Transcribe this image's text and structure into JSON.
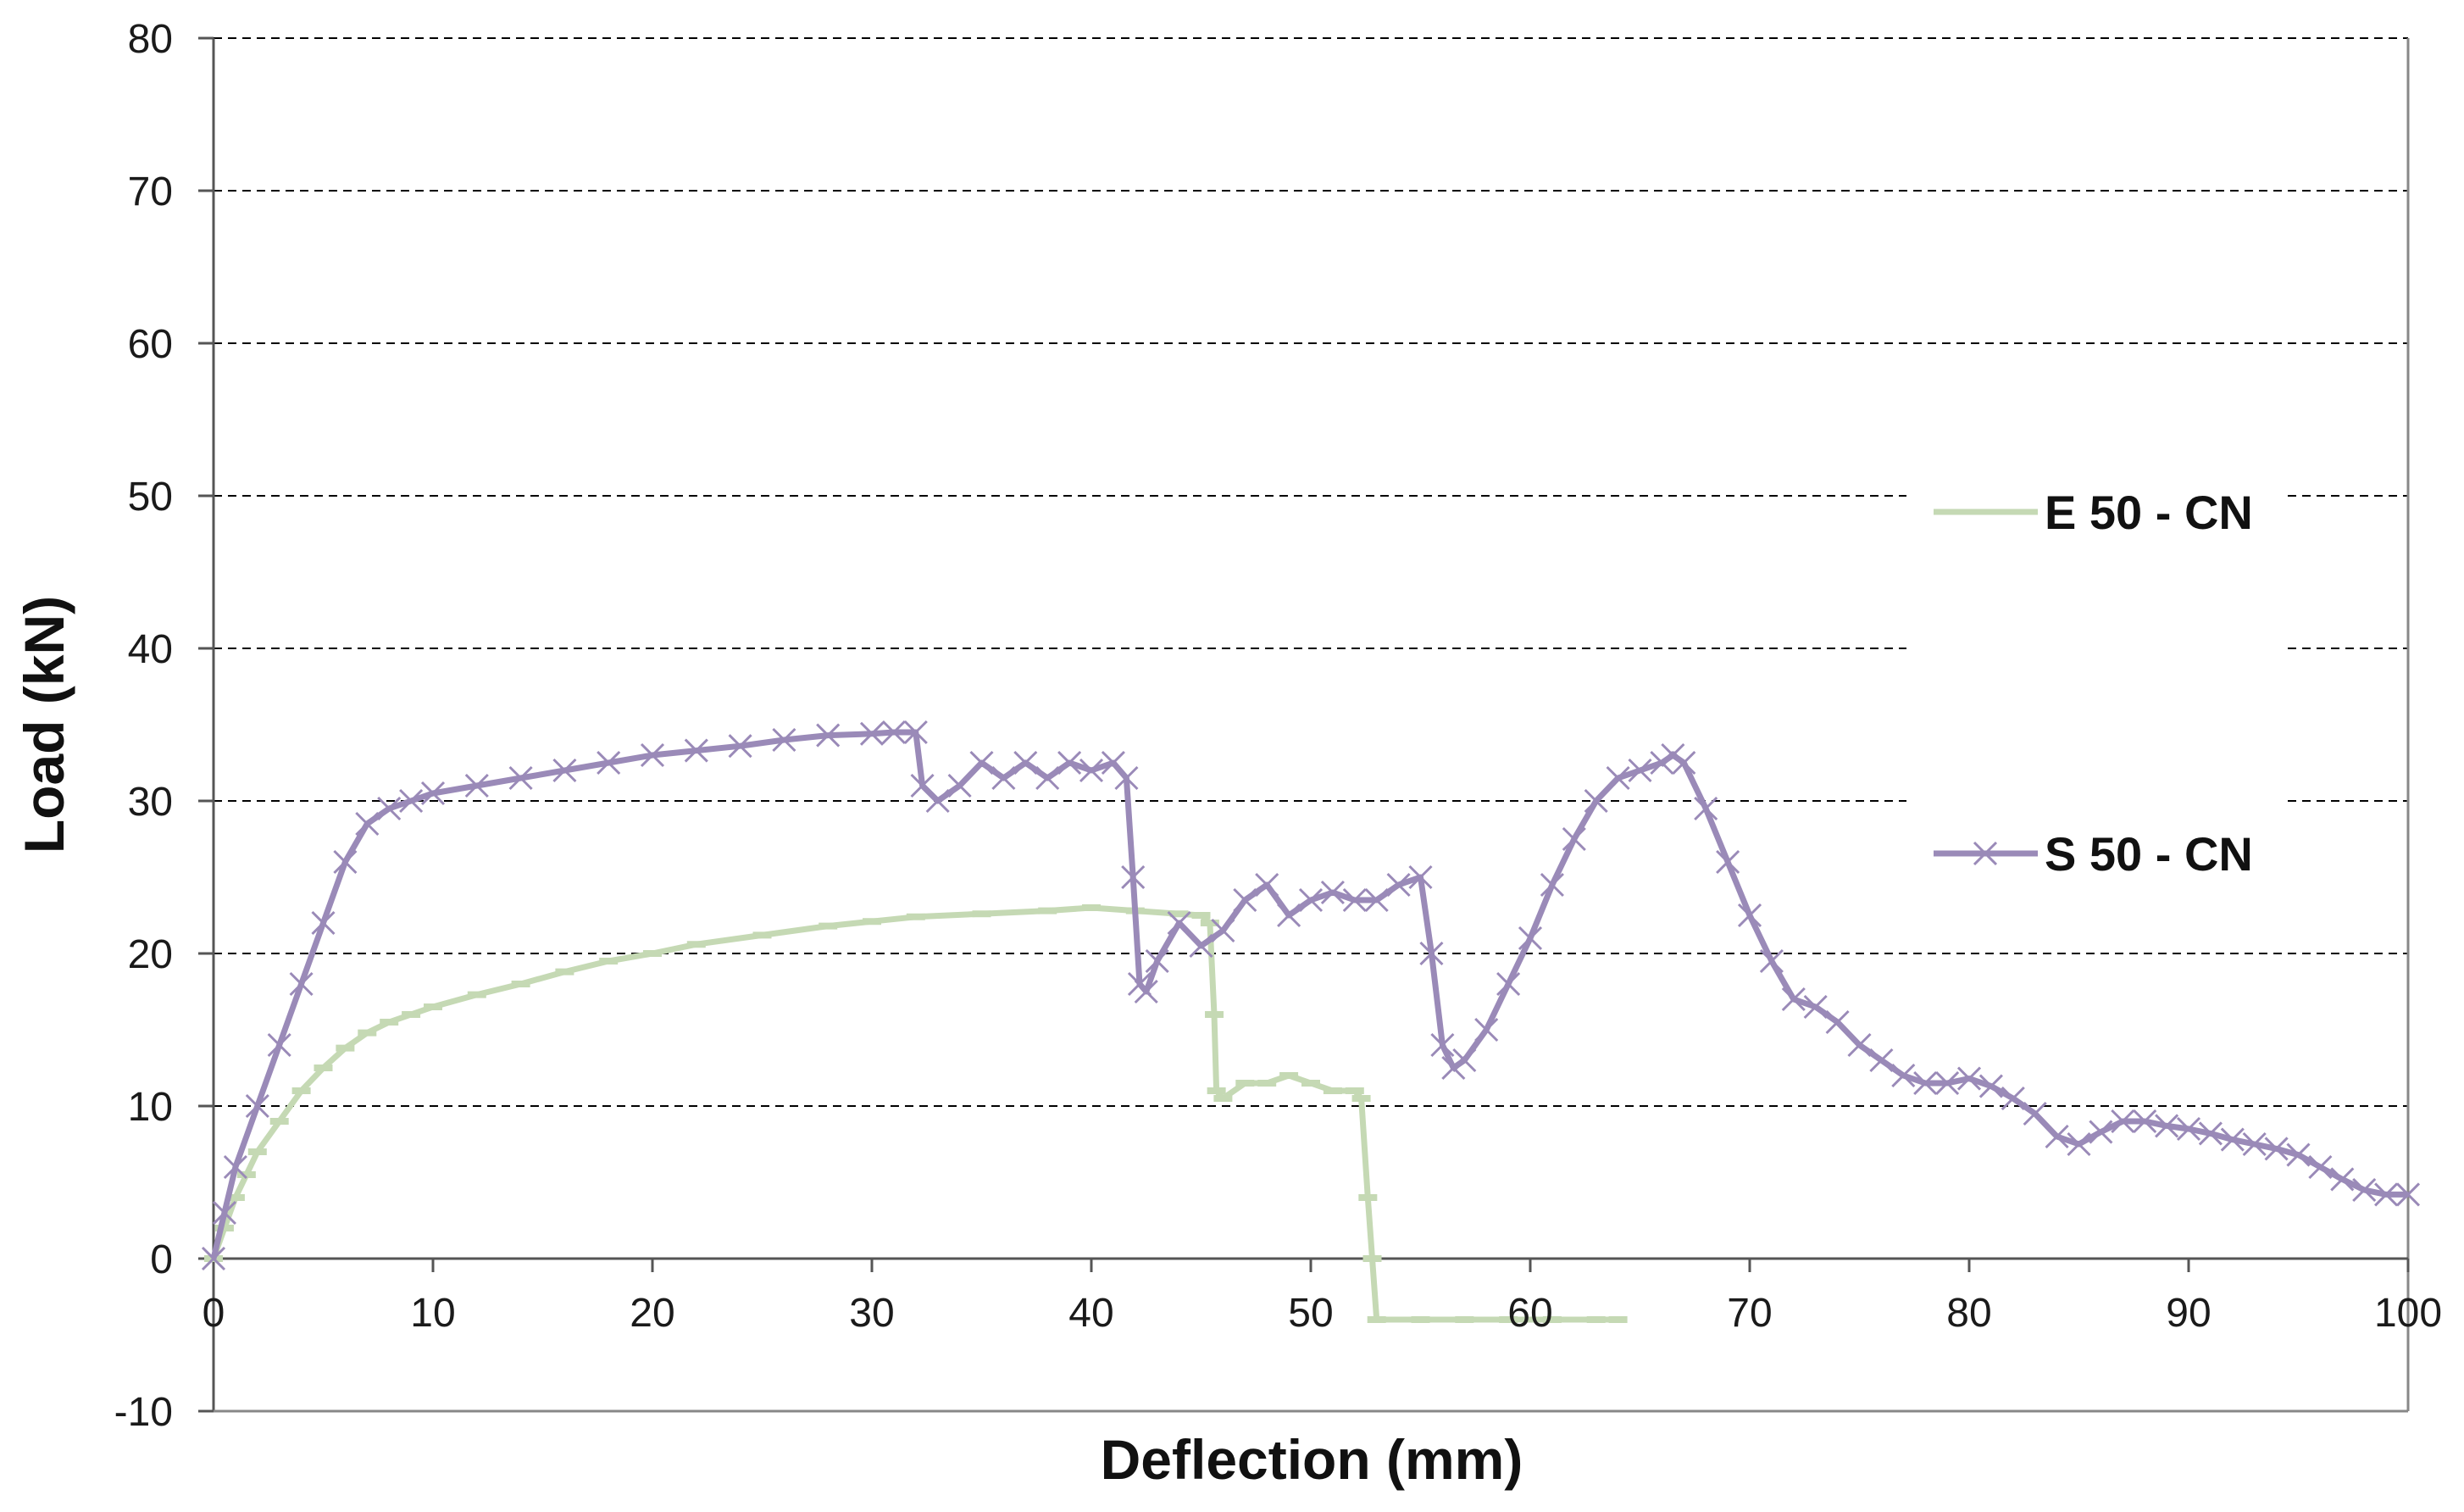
{
  "chart_data": {
    "type": "line",
    "title": "",
    "xlabel": "Deflection (mm)",
    "ylabel": "Load (kN)",
    "xlim": [
      0,
      100
    ],
    "ylim": [
      -10,
      80
    ],
    "xticks": [
      0,
      10,
      20,
      30,
      40,
      50,
      60,
      70,
      80,
      90,
      100
    ],
    "yticks": [
      -10,
      0,
      10,
      20,
      30,
      40,
      50,
      60,
      70,
      80
    ],
    "x_tick_labels": [
      "0",
      "10",
      "20",
      "30",
      "40",
      "50",
      "60",
      "70",
      "80",
      "90",
      "100"
    ],
    "y_tick_labels": [
      "-10",
      "0",
      "10",
      "20",
      "30",
      "40",
      "50",
      "60",
      "70",
      "80"
    ],
    "grid": "horizontal dashed",
    "legend_position": "right",
    "series": [
      {
        "name": "E 50 - CN",
        "color": "#c5d9b4",
        "marker": "dash",
        "points": [
          [
            0,
            0
          ],
          [
            0.5,
            2
          ],
          [
            1,
            4
          ],
          [
            1.5,
            5.5
          ],
          [
            2,
            7
          ],
          [
            3,
            9
          ],
          [
            4,
            11
          ],
          [
            5,
            12.5
          ],
          [
            6,
            13.8
          ],
          [
            7,
            14.8
          ],
          [
            8,
            15.5
          ],
          [
            9,
            16
          ],
          [
            10,
            16.5
          ],
          [
            12,
            17.3
          ],
          [
            14,
            18
          ],
          [
            16,
            18.8
          ],
          [
            18,
            19.5
          ],
          [
            20,
            20
          ],
          [
            22,
            20.6
          ],
          [
            25,
            21.2
          ],
          [
            28,
            21.8
          ],
          [
            30,
            22.1
          ],
          [
            32,
            22.4
          ],
          [
            35,
            22.6
          ],
          [
            38,
            22.8
          ],
          [
            40,
            23
          ],
          [
            42,
            22.8
          ],
          [
            44,
            22.6
          ],
          [
            45,
            22.5
          ],
          [
            45.4,
            22
          ],
          [
            45.6,
            16
          ],
          [
            45.7,
            11
          ],
          [
            46,
            10.5
          ],
          [
            47,
            11.5
          ],
          [
            48,
            11.5
          ],
          [
            49,
            12
          ],
          [
            50,
            11.5
          ],
          [
            51,
            11
          ],
          [
            52,
            11
          ],
          [
            52.3,
            10.5
          ],
          [
            52.6,
            4
          ],
          [
            52.8,
            0
          ],
          [
            53,
            -4
          ],
          [
            55,
            -4
          ],
          [
            57,
            -4
          ],
          [
            59,
            -4
          ],
          [
            61,
            -4
          ],
          [
            63,
            -4
          ],
          [
            64,
            -4
          ]
        ]
      },
      {
        "name": "S 50 - CN",
        "color": "#9a8ab8",
        "marker": "x",
        "points": [
          [
            0,
            0
          ],
          [
            0.5,
            3
          ],
          [
            1,
            6
          ],
          [
            2,
            10
          ],
          [
            3,
            14
          ],
          [
            4,
            18
          ],
          [
            5,
            22
          ],
          [
            6,
            26
          ],
          [
            7,
            28.5
          ],
          [
            8,
            29.5
          ],
          [
            9,
            30
          ],
          [
            10,
            30.5
          ],
          [
            12,
            31
          ],
          [
            14,
            31.5
          ],
          [
            16,
            32
          ],
          [
            18,
            32.5
          ],
          [
            20,
            33
          ],
          [
            22,
            33.3
          ],
          [
            24,
            33.6
          ],
          [
            26,
            34
          ],
          [
            28,
            34.3
          ],
          [
            30,
            34.4
          ],
          [
            31,
            34.5
          ],
          [
            32,
            34.5
          ],
          [
            32.3,
            31
          ],
          [
            33,
            30
          ],
          [
            34,
            31
          ],
          [
            35,
            32.5
          ],
          [
            36,
            31.5
          ],
          [
            37,
            32.5
          ],
          [
            38,
            31.5
          ],
          [
            39,
            32.5
          ],
          [
            40,
            32
          ],
          [
            41,
            32.5
          ],
          [
            41.6,
            31.5
          ],
          [
            41.9,
            25
          ],
          [
            42.2,
            18
          ],
          [
            42.5,
            17.5
          ],
          [
            43,
            19.5
          ],
          [
            44,
            22
          ],
          [
            45,
            20.5
          ],
          [
            46,
            21.5
          ],
          [
            47,
            23.5
          ],
          [
            48,
            24.5
          ],
          [
            49,
            22.5
          ],
          [
            50,
            23.5
          ],
          [
            51,
            24
          ],
          [
            52,
            23.5
          ],
          [
            53,
            23.5
          ],
          [
            54,
            24.5
          ],
          [
            55,
            25
          ],
          [
            55.5,
            20
          ],
          [
            56,
            14
          ],
          [
            56.5,
            12.5
          ],
          [
            57,
            13
          ],
          [
            58,
            15
          ],
          [
            59,
            18
          ],
          [
            60,
            21
          ],
          [
            61,
            24.5
          ],
          [
            62,
            27.5
          ],
          [
            63,
            30
          ],
          [
            64,
            31.5
          ],
          [
            65,
            32
          ],
          [
            66,
            32.5
          ],
          [
            66.5,
            33
          ],
          [
            67,
            32.5
          ],
          [
            68,
            29.5
          ],
          [
            69,
            26
          ],
          [
            70,
            22.5
          ],
          [
            71,
            19.5
          ],
          [
            72,
            17
          ],
          [
            73,
            16.5
          ],
          [
            74,
            15.5
          ],
          [
            75,
            14
          ],
          [
            76,
            13
          ],
          [
            77,
            12
          ],
          [
            78,
            11.5
          ],
          [
            79,
            11.5
          ],
          [
            80,
            11.8
          ],
          [
            81,
            11.3
          ],
          [
            82,
            10.5
          ],
          [
            83,
            9.5
          ],
          [
            84,
            8
          ],
          [
            85,
            7.5
          ],
          [
            86,
            8.3
          ],
          [
            87,
            9
          ],
          [
            88,
            9
          ],
          [
            89,
            8.7
          ],
          [
            90,
            8.5
          ],
          [
            91,
            8.2
          ],
          [
            92,
            7.8
          ],
          [
            93,
            7.5
          ],
          [
            94,
            7.2
          ],
          [
            95,
            6.8
          ],
          [
            96,
            6
          ],
          [
            97,
            5.2
          ],
          [
            98,
            4.5
          ],
          [
            99,
            4.2
          ],
          [
            100,
            4.2
          ]
        ]
      }
    ]
  }
}
